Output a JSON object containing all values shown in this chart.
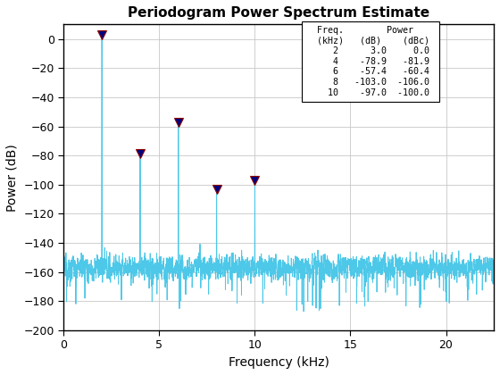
{
  "title": "Periodogram Power Spectrum Estimate",
  "xlabel": "Frequency (kHz)",
  "ylabel": "Power (dB)",
  "xlim": [
    0,
    22.5
  ],
  "ylim": [
    -200,
    10
  ],
  "yticks": [
    0,
    -20,
    -40,
    -60,
    -80,
    -100,
    -120,
    -140,
    -160,
    -180,
    -200
  ],
  "xticks": [
    0,
    5,
    10,
    15,
    20
  ],
  "line_color": "#4DC8E8",
  "noise_floor": -157,
  "noise_std": 7,
  "peaks": [
    {
      "freq": 2,
      "power": 3.0,
      "power_dbc": 0.0
    },
    {
      "freq": 4,
      "power": -78.9,
      "power_dbc": -81.9
    },
    {
      "freq": 6,
      "power": -57.4,
      "power_dbc": -60.4
    },
    {
      "freq": 8,
      "power": -103.0,
      "power_dbc": -106.0
    },
    {
      "freq": 10,
      "power": -97.0,
      "power_dbc": -100.0
    }
  ],
  "marker_color": "navy",
  "marker_edge_color": "darkred",
  "bg_color": "#FFFFFF",
  "grid_color": "#C8C8C8",
  "sample_rate_khz": 22.5,
  "num_points": 4096,
  "figsize": [
    5.6,
    4.2
  ],
  "dpi": 100,
  "table_text_lines": [
    "  Freq.        Power   ",
    "  (kHz)   (dB)    (dBc)",
    "     2      3.0     0.0 ",
    "     4    -78.9   -81.9 ",
    "     6    -57.4   -60.4 ",
    "     8   -103.0  -106.0 ",
    "    10    -97.0  -100.0 "
  ]
}
